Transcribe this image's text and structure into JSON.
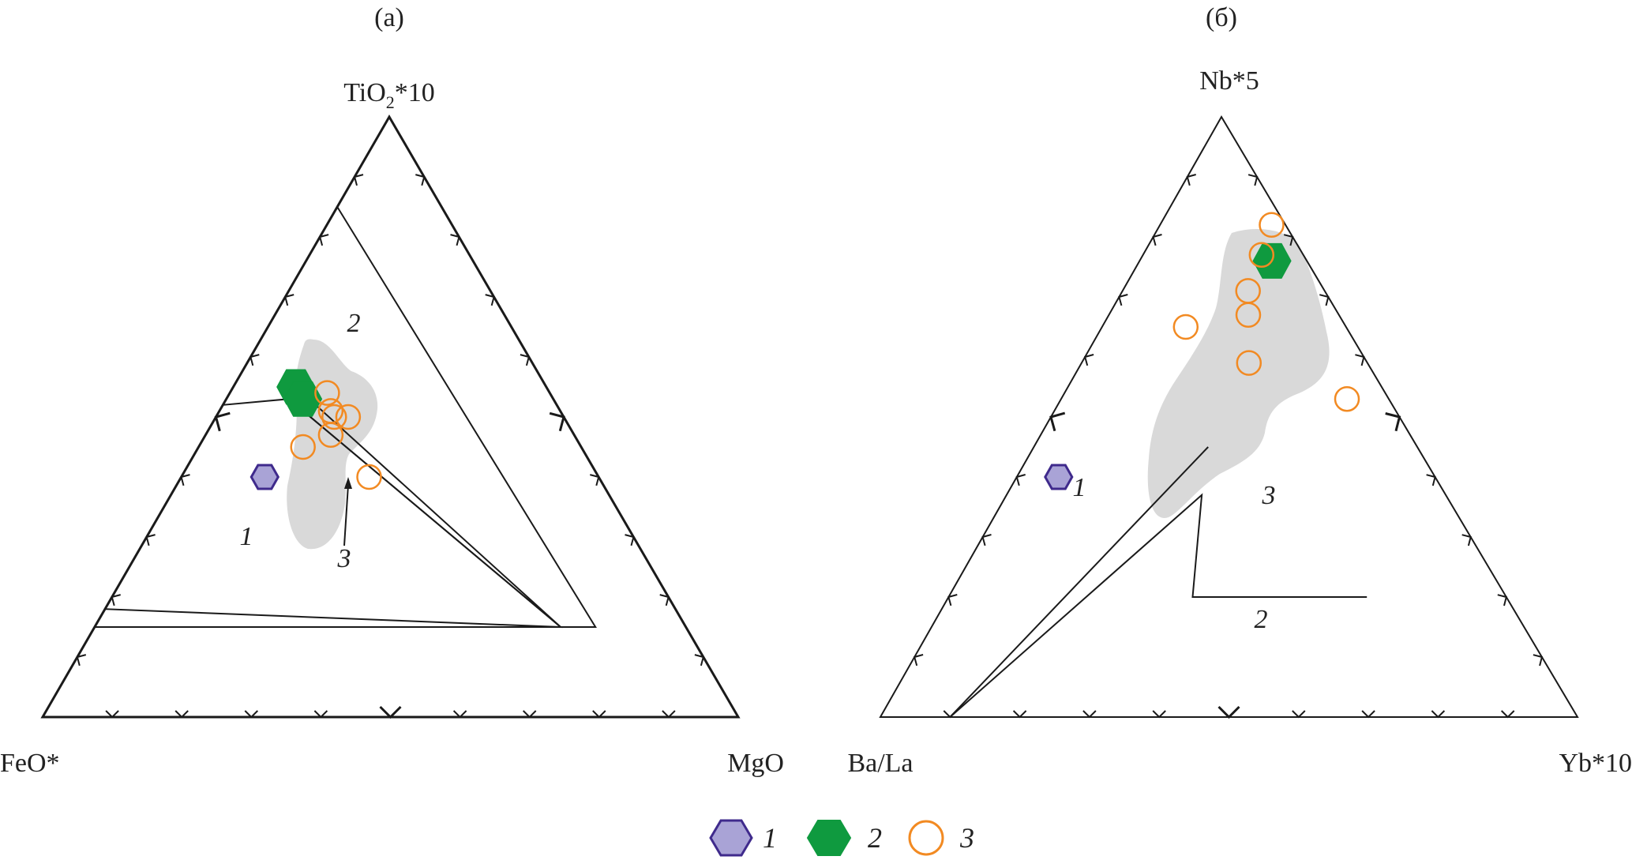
{
  "colors": {
    "field": "#d9d9d9",
    "outline": "#1a1a1a",
    "series1_fill": "#a9a3d6",
    "series1_stroke": "#3f2a8c",
    "series2_fill": "#0f9a3f",
    "series3_stroke": "#f28a22"
  },
  "chart_data": [
    {
      "type": "scatter",
      "subtype": "ternary",
      "panel_label": "(а)",
      "apices": {
        "top": "TiO",
        "top_sub": "2",
        "top_suffix": "*10",
        "left": "FeO*",
        "right": "MgO"
      },
      "field_labels": [
        "1",
        "2",
        "3"
      ],
      "series": [
        {
          "name": "1",
          "points": [
            {
              "top": 0.4,
              "left": 0.48,
              "right": 0.12
            }
          ]
        },
        {
          "name": "2",
          "points": [
            {
              "top": 0.55,
              "left": 0.36,
              "right": 0.09
            },
            {
              "top": 0.53,
              "left": 0.36,
              "right": 0.11
            }
          ]
        },
        {
          "name": "3",
          "points": [
            {
              "top": 0.54,
              "left": 0.32,
              "right": 0.14
            },
            {
              "top": 0.51,
              "left": 0.33,
              "right": 0.16
            },
            {
              "top": 0.5,
              "left": 0.33,
              "right": 0.17
            },
            {
              "top": 0.5,
              "left": 0.31,
              "right": 0.19
            },
            {
              "top": 0.47,
              "left": 0.35,
              "right": 0.18
            },
            {
              "top": 0.45,
              "left": 0.4,
              "right": 0.15
            },
            {
              "top": 0.4,
              "left": 0.33,
              "right": 0.27
            }
          ]
        }
      ],
      "field_boundaries": [
        {
          "field": "2",
          "vertices": [
            {
              "top": 0.85,
              "left": 0.15,
              "right": 0.0
            },
            {
              "top": 0.15,
              "left": 0.13,
              "right": 0.72
            },
            {
              "top": 0.15,
              "left": 0.85,
              "right": 0.0
            }
          ]
        },
        {
          "field": "1",
          "vertices": [
            {
              "top": 0.52,
              "left": 0.48,
              "right": 0.0
            },
            {
              "top": 0.18,
              "left": 0.82,
              "right": 0.0
            },
            {
              "top": 0.15,
              "left": 0.18,
              "right": 0.67
            },
            {
              "top": 0.53,
              "left": 0.38,
              "right": 0.09
            }
          ]
        },
        {
          "field": "3",
          "vertices": [
            {
              "top": 0.53,
              "left": 0.38,
              "right": 0.09
            },
            {
              "top": 0.55,
              "left": 0.36,
              "right": 0.09
            },
            {
              "top": 0.15,
              "left": 0.18,
              "right": 0.67
            }
          ]
        }
      ],
      "shaded_region": "grey envelope"
    },
    {
      "type": "scatter",
      "subtype": "ternary",
      "panel_label": "(б)",
      "apices": {
        "top": "Nb*5",
        "left": "Ba/La",
        "right": "Yb*10"
      },
      "field_labels": [
        "1",
        "2",
        "3"
      ],
      "series": [
        {
          "name": "1",
          "points": [
            {
              "top": 0.4,
              "left": 0.54,
              "right": 0.06
            }
          ]
        },
        {
          "name": "2",
          "points": [
            {
              "top": 0.76,
              "left": 0.05,
              "right": 0.19
            }
          ]
        },
        {
          "name": "3",
          "points": [
            {
              "top": 0.82,
              "left": 0.02,
              "right": 0.16
            },
            {
              "top": 0.77,
              "left": 0.06,
              "right": 0.17
            },
            {
              "top": 0.71,
              "left": 0.11,
              "right": 0.18
            },
            {
              "top": 0.67,
              "left": 0.13,
              "right": 0.2
            },
            {
              "top": 0.65,
              "left": 0.23,
              "right": 0.12
            },
            {
              "top": 0.59,
              "left": 0.17,
              "right": 0.24
            },
            {
              "top": 0.53,
              "left": 0.06,
              "right": 0.41
            }
          ]
        }
      ],
      "field_boundaries": [
        {
          "boundary": "upper",
          "vertices": [
            {
              "top": 0.0,
              "left": 0.9,
              "right": 0.1
            },
            {
              "top": 0.45,
              "left": 0.3,
              "right": 0.25
            }
          ]
        },
        {
          "boundary": "lower",
          "vertices": [
            {
              "top": 0.0,
              "left": 0.9,
              "right": 0.1
            },
            {
              "top": 0.37,
              "left": 0.35,
              "right": 0.28
            },
            {
              "top": 0.2,
              "left": 0.45,
              "right": 0.35
            },
            {
              "top": 0.2,
              "left": 0.2,
              "right": 0.6
            }
          ]
        }
      ],
      "shaded_region": "grey envelope"
    }
  ],
  "legend": [
    {
      "symbol": "hexagon-light-purple",
      "label": "1"
    },
    {
      "symbol": "hexagon-green",
      "label": "2"
    },
    {
      "symbol": "circle-orange-open",
      "label": "3"
    }
  ]
}
